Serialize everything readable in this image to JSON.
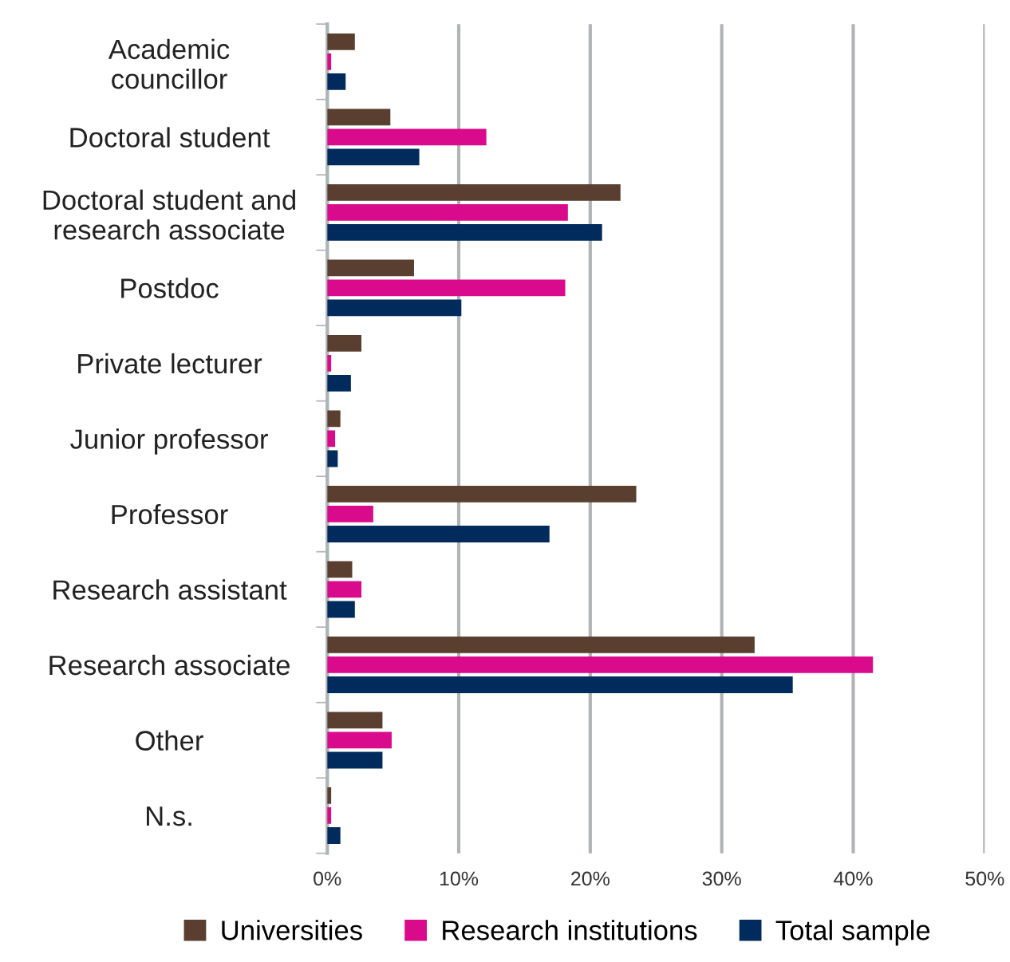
{
  "chart_data": {
    "type": "bar",
    "orientation": "horizontal",
    "categories": [
      "Academic\ncouncillor",
      "Doctoral student",
      "Doctoral student and\nresearch associate",
      "Postdoc",
      "Private lecturer",
      "Junior professor",
      "Professor",
      "Research assistant",
      "Research associate",
      "Other",
      "N.s."
    ],
    "series": [
      {
        "name": "Universities",
        "color": "#5a3e2f",
        "values": [
          2.1,
          4.8,
          22.3,
          6.6,
          2.6,
          1.0,
          23.5,
          1.9,
          32.5,
          4.2,
          0.3
        ]
      },
      {
        "name": "Research institutions",
        "color": "#d90b8c",
        "values": [
          0.3,
          12.1,
          18.3,
          18.1,
          0.3,
          0.6,
          3.5,
          2.6,
          41.5,
          4.9,
          0.3
        ]
      },
      {
        "name": "Total sample",
        "color": "#002b5c",
        "values": [
          1.4,
          7.0,
          20.9,
          10.2,
          1.8,
          0.8,
          16.9,
          2.1,
          35.4,
          4.2,
          1.0
        ]
      }
    ],
    "xlim": [
      0,
      50
    ],
    "xticks": [
      {
        "value": 0,
        "label": "0%"
      },
      {
        "value": 10,
        "label": "10%"
      },
      {
        "value": 20,
        "label": "20%"
      },
      {
        "value": 30,
        "label": "30%"
      },
      {
        "value": 40,
        "label": "40%"
      },
      {
        "value": 50,
        "label": "50%"
      }
    ],
    "grid": "x",
    "legend": "bottom"
  }
}
